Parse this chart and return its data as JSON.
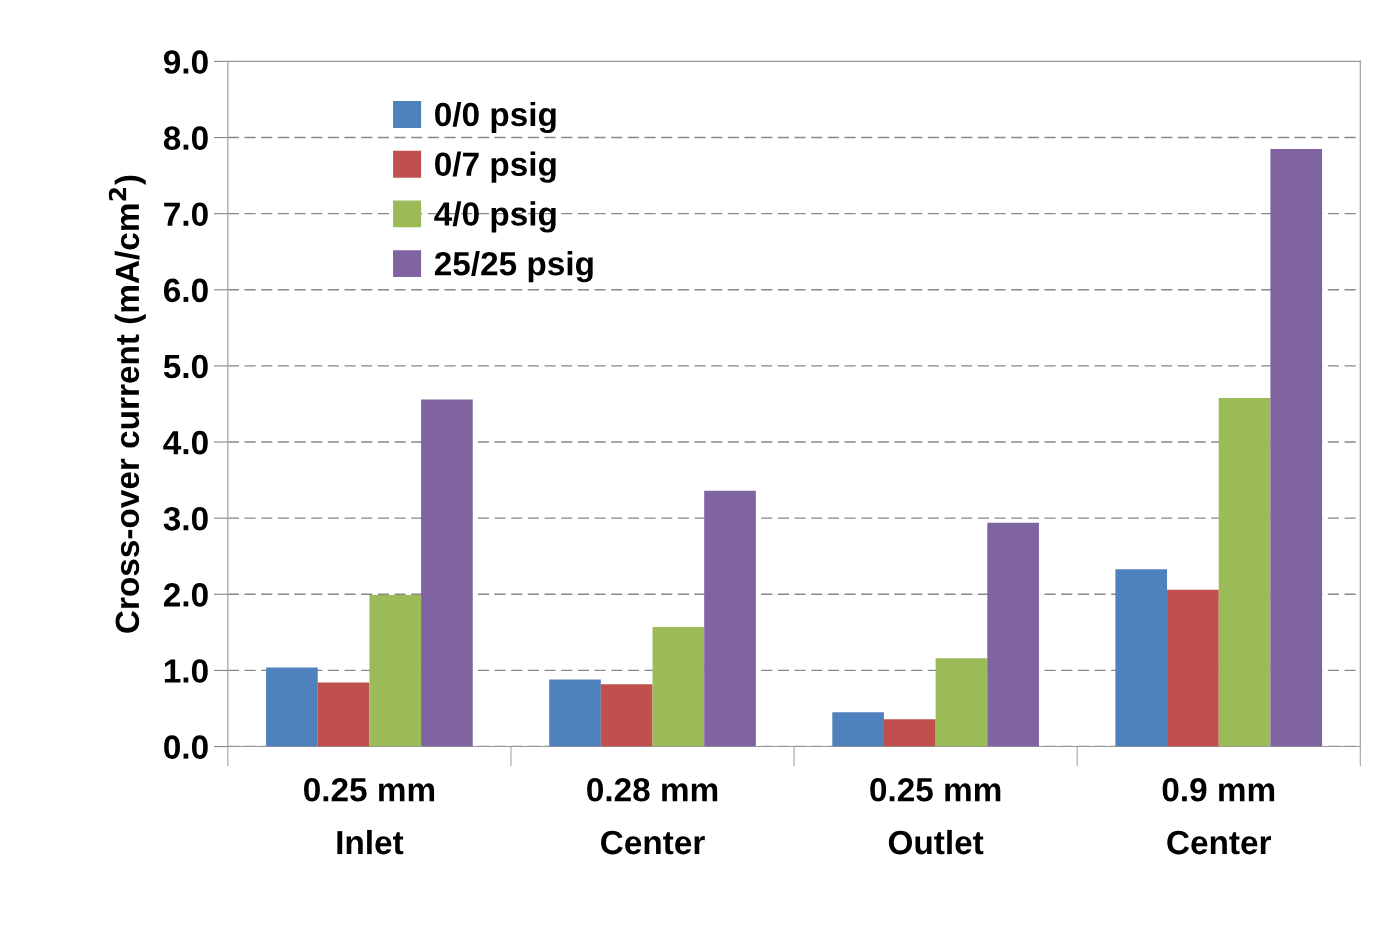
{
  "chart_data": {
    "type": "bar",
    "ylabel": "Cross-over current (mA/cm$^{2}$)",
    "categories": [
      "0.25 mm\nInlet",
      "0.28 mm\nCenter",
      "0.25 mm\nOutlet",
      "0.9 mm\nCenter"
    ],
    "series": [
      {
        "name": "0/0 psig",
        "color": "#4f81bd",
        "values": [
          1.04,
          0.88,
          0.45,
          2.33
        ]
      },
      {
        "name": "0/7 psig",
        "color": "#c0504d",
        "values": [
          0.84,
          0.82,
          0.36,
          2.06
        ]
      },
      {
        "name": "4/0 psig",
        "color": "#9bbb59",
        "values": [
          1.99,
          1.57,
          1.16,
          4.58
        ]
      },
      {
        "name": "25/25 psig",
        "color": "#8064a2",
        "values": [
          4.56,
          3.36,
          2.94,
          7.85
        ]
      }
    ],
    "ylim": [
      0,
      9
    ],
    "yticks": [
      {
        "value": 0,
        "label": "0.0"
      },
      {
        "value": 1,
        "label": "1.0"
      },
      {
        "value": 2,
        "label": "2.0"
      },
      {
        "value": 3,
        "label": "3.0"
      },
      {
        "value": 4,
        "label": "4.0"
      },
      {
        "value": 5,
        "label": "5.0"
      },
      {
        "value": 6,
        "label": "6.0"
      },
      {
        "value": 7,
        "label": "7.0"
      },
      {
        "value": 8,
        "label": "8.0"
      },
      {
        "value": 9,
        "label": "9.0"
      }
    ],
    "grid": "y",
    "legend": "top left"
  }
}
